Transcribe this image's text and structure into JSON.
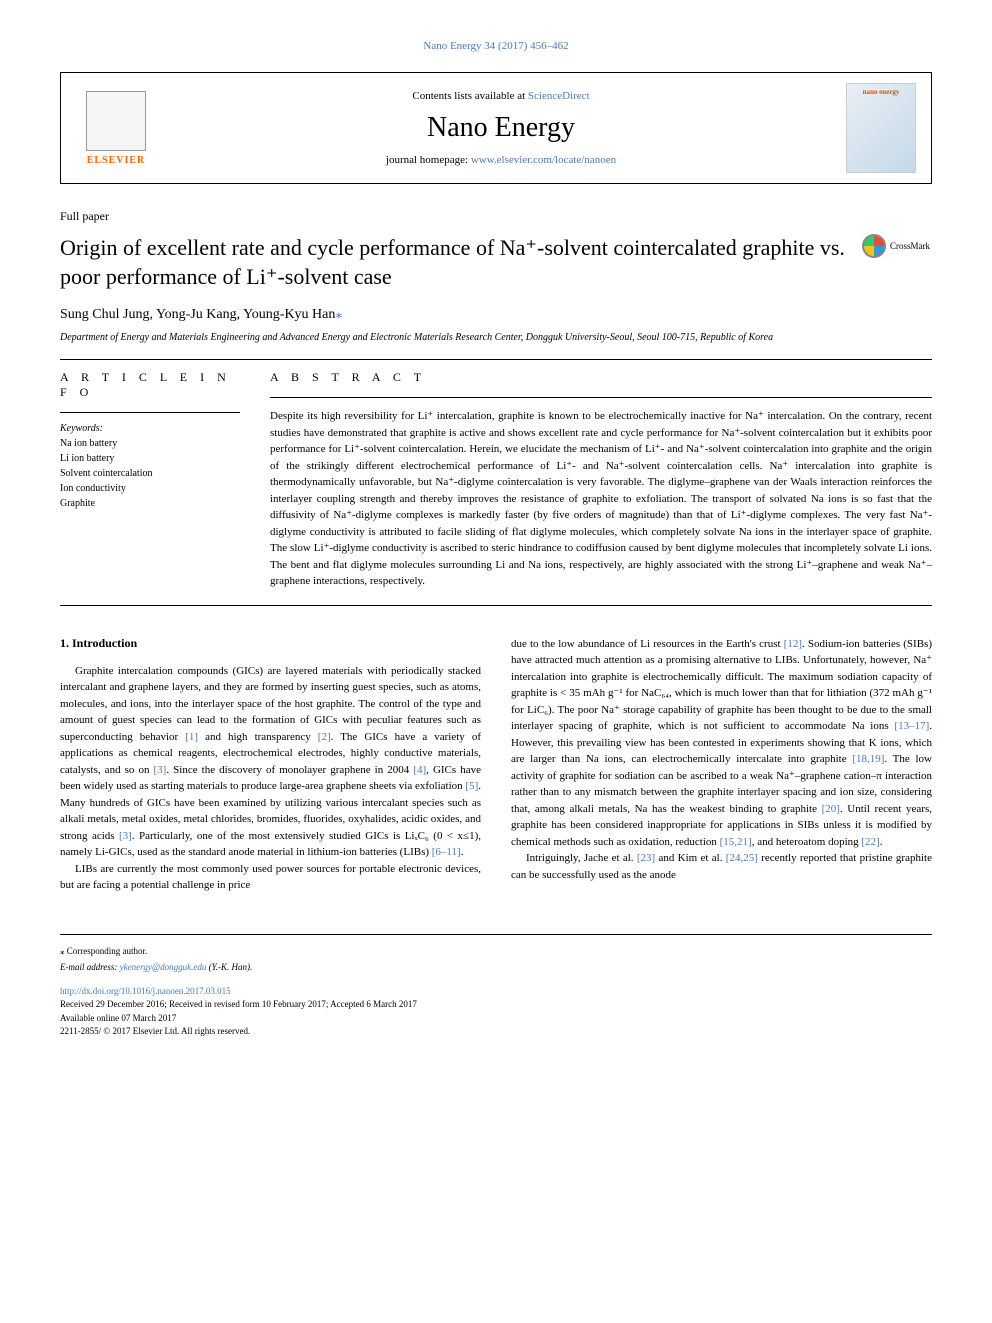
{
  "journal_ref": "Nano Energy 34 (2017) 456–462",
  "header": {
    "elsevier_label": "ELSEVIER",
    "contents_prefix": "Contents lists available at ",
    "contents_link": "ScienceDirect",
    "journal_name": "Nano Energy",
    "homepage_prefix": "journal homepage: ",
    "homepage_link": "www.elsevier.com/locate/nanoen",
    "cover_text": "nano energy"
  },
  "paper_type": "Full paper",
  "title": "Origin of excellent rate and cycle performance of Na⁺-solvent cointercalated graphite vs. poor performance of Li⁺-solvent case",
  "crossmark_label": "CrossMark",
  "authors": "Sung Chul Jung, Yong-Ju Kang, Young-Kyu Han",
  "corresponding_marker": "⁎",
  "affiliation": "Department of Energy and Materials Engineering and Advanced Energy and Electronic Materials Research Center, Dongguk University-Seoul, Seoul 100-715, Republic of Korea",
  "article_info_heading": "A R T I C L E  I N F O",
  "keywords_label": "Keywords:",
  "keywords": [
    "Na ion battery",
    "Li ion battery",
    "Solvent cointercalation",
    "Ion conductivity",
    "Graphite"
  ],
  "abstract_heading": "A B S T R A C T",
  "abstract_text": "Despite its high reversibility for Li⁺ intercalation, graphite is known to be electrochemically inactive for Na⁺ intercalation. On the contrary, recent studies have demonstrated that graphite is active and shows excellent rate and cycle performance for Na⁺-solvent cointercalation but it exhibits poor performance for Li⁺-solvent cointercalation. Herein, we elucidate the mechanism of Li⁺- and Na⁺-solvent cointercalation into graphite and the origin of the strikingly different electrochemical performance of Li⁺- and Na⁺-solvent cointercalation cells. Na⁺ intercalation into graphite is thermodynamically unfavorable, but Na⁺-diglyme cointercalation is very favorable. The diglyme–graphene van der Waals interaction reinforces the interlayer coupling strength and thereby improves the resistance of graphite to exfoliation. The transport of solvated Na ions is so fast that the diffusivity of Na⁺-diglyme complexes is markedly faster (by five orders of magnitude) than that of Li⁺-diglyme complexes. The very fast Na⁺-diglyme conductivity is attributed to facile sliding of flat diglyme molecules, which completely solvate Na ions in the interlayer space of graphite. The slow Li⁺-diglyme conductivity is ascribed to steric hindrance to codiffusion caused by bent diglyme molecules that incompletely solvate Li ions. The bent and flat diglyme molecules surrounding Li and Na ions, respectively, are highly associated with the strong Li⁺–graphene and weak Na⁺–graphene interactions, respectively.",
  "intro_heading": "1. Introduction",
  "intro_p1_a": "Graphite intercalation compounds (GICs) are layered materials with periodically stacked intercalant and graphene layers, and they are formed by inserting guest species, such as atoms, molecules, and ions, into the interlayer space of the host graphite. The control of the type and amount of guest species can lead to the formation of GICs with peculiar features such as superconducting behavior ",
  "ref_1": "[1]",
  "intro_p1_b": " and high transparency ",
  "ref_2": "[2]",
  "intro_p1_c": ". The GICs have a variety of applications as chemical reagents, electrochemical electrodes, highly conductive materials, catalysts, and so on ",
  "ref_3": "[3]",
  "intro_p1_d": ". Since the discovery of monolayer graphene in 2004 ",
  "ref_4": "[4]",
  "intro_p1_e": ", GICs have been widely used as starting materials to produce large-area graphene sheets via exfoliation ",
  "ref_5": "[5]",
  "intro_p1_f": ". Many hundreds of GICs have been examined by utilizing various intercalant species such as alkali metals, metal oxides, metal chlorides, bromides, fluorides, oxyhalides, acidic oxides, and strong acids ",
  "intro_p1_g": ". Particularly, one of the most extensively studied GICs is LiₓC₆ (0 < x≤1), namely Li-GICs, used as the standard anode material in lithium-ion batteries (LIBs) ",
  "ref_6_11": "[6–11]",
  "intro_p1_h": ".",
  "intro_p2": "LIBs are currently the most commonly used power sources for portable electronic devices, but are facing a potential challenge in price",
  "col2_p1_a": "due to the low abundance of Li resources in the Earth's crust ",
  "ref_12": "[12]",
  "col2_p1_b": ". Sodium-ion batteries (SIBs) have attracted much attention as a promising alternative to LIBs. Unfortunately, however, Na⁺ intercalation into graphite is electrochemically difficult. The maximum sodiation capacity of graphite is < 35 mAh g⁻¹ for NaC₆₄, which is much lower than that for lithiation (372 mAh g⁻¹ for LiC₆). The poor Na⁺ storage capability of graphite has been thought to be due to the small interlayer spacing of graphite, which is not sufficient to accommodate Na ions ",
  "ref_13_17": "[13–17]",
  "col2_p1_c": ". However, this prevailing view has been contested in experiments showing that K ions, which are larger than Na ions, can electrochemically intercalate into graphite ",
  "ref_18_19": "[18,19]",
  "col2_p1_d": ". The low activity of graphite for sodiation can be ascribed to a weak Na⁺–graphene cation–π interaction rather than to any mismatch between the graphite interlayer spacing and ion size, considering that, among alkali metals, Na has the weakest binding to graphite ",
  "ref_20": "[20]",
  "col2_p1_e": ". Until recent years, graphite has been considered inappropriate for applications in SIBs unless it is modified by chemical methods such as oxidation, reduction ",
  "ref_15_21": "[15,21]",
  "col2_p1_f": ", and heteroatom doping ",
  "ref_22": "[22]",
  "col2_p1_g": ".",
  "col2_p2_a": "Intriguingly, Jache et al. ",
  "ref_23": "[23]",
  "col2_p2_b": " and Kim et al. ",
  "ref_24_25": "[24,25]",
  "col2_p2_c": " recently reported that pristine graphite can be successfully used as the anode",
  "footer": {
    "corresponding": "⁎ Corresponding author.",
    "email_label": "E-mail address: ",
    "email": "ykenergy@dongguk.edu",
    "email_suffix": " (Y.-K. Han).",
    "doi": "http://dx.doi.org/10.1016/j.nanoen.2017.03.015",
    "received": "Received 29 December 2016; Received in revised form 10 February 2017; Accepted 6 March 2017",
    "available": "Available online 07 March 2017",
    "copyright": "2211-2855/ © 2017 Elsevier Ltd. All rights reserved."
  },
  "colors": {
    "link_blue": "#4a7bb5",
    "elsevier_orange": "#ff6600",
    "text_black": "#000000",
    "background": "#ffffff"
  },
  "typography": {
    "body_font": "Georgia, Times New Roman, serif",
    "title_size_pt": 22,
    "journal_name_size_pt": 28,
    "body_size_pt": 11,
    "abstract_size_pt": 11,
    "footer_size_pt": 9
  }
}
